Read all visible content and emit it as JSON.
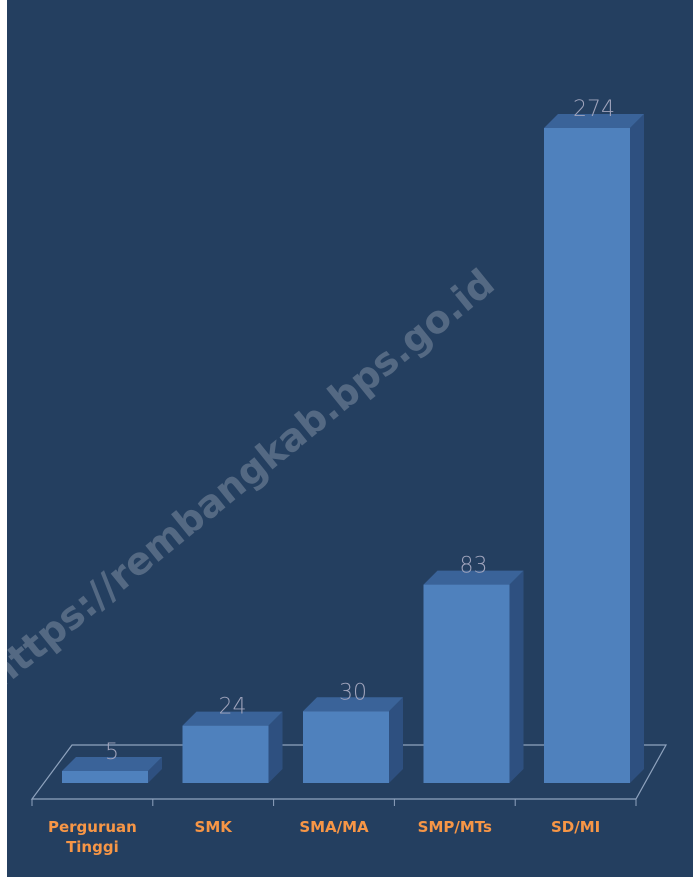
{
  "chart_data": {
    "type": "bar",
    "categories": [
      "Perguruan Tinggi",
      "SMK",
      "SMA/MA",
      "SMP/MTs",
      "SD/MI"
    ],
    "category_lines": [
      [
        "Perguruan",
        "Tinggi"
      ],
      [
        "SMK"
      ],
      [
        "SMA/MA"
      ],
      [
        "SMP/MTs"
      ],
      [
        "SD/MI"
      ]
    ],
    "values": [
      5,
      24,
      30,
      83,
      274
    ],
    "value_labels": [
      "5",
      "24",
      "30",
      "83",
      "274"
    ],
    "ylim": [
      0,
      274
    ],
    "style": "3d-column",
    "grid": false,
    "legend": "none"
  },
  "watermark": "https://rembangkab.bps.go.id",
  "colors": {
    "background": "#243f60",
    "bar_front": "#4f81bd",
    "bar_top": "#3a6399",
    "bar_side": "#2e5080",
    "value_label": "#a0a4bc",
    "category_label": "#f79646",
    "axis": "#8fa3be"
  }
}
